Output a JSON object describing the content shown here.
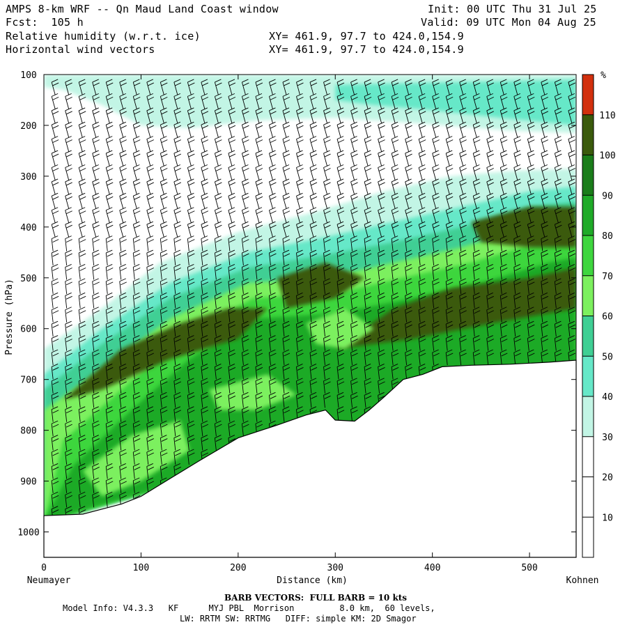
{
  "header": {
    "title": "AMPS 8-km WRF -- Qn Maud Land Coast window",
    "init": "Init: 00 UTC Thu 31 Jul 25",
    "fcst": "Fcst:  105 h",
    "valid": "Valid: 09 UTC Mon 04 Aug 25",
    "field1": "Relative humidity (w.r.t. ice)",
    "field1_xy": "XY= 461.9, 97.7 to 424.0,154.9",
    "field2": "Horizontal wind vectors",
    "field2_xy": "XY= 461.9, 97.7 to 424.0,154.9"
  },
  "footer": {
    "barb_note": "BARB VECTORS:  FULL BARB = 10 kts",
    "model_line1": "Model Info: V4.3.3   KF      MYJ PBL  Morrison         8.0 km,  60 levels,",
    "model_line2": "LW: RRTM SW: RRTMG   DIFF: simple KM: 2D Smagor"
  },
  "chart_data": {
    "type": "heatmap",
    "description": "",
    "xlabel": "Distance (km)",
    "ylabel": "Pressure (hPa)",
    "xlim": [
      0,
      548
    ],
    "ylim": [
      1050,
      100
    ],
    "x_ticks": [
      0,
      100,
      200,
      300,
      400,
      500
    ],
    "y_ticks": [
      100,
      200,
      300,
      400,
      500,
      600,
      700,
      800,
      900,
      1000
    ],
    "x_endpoints": {
      "left": "Neumayer",
      "right": "Kohnen"
    },
    "colorbar": {
      "unit": "%",
      "levels": [
        10,
        20,
        30,
        40,
        50,
        60,
        70,
        80,
        90,
        100,
        110
      ],
      "colors": [
        "#ffffff",
        "#ffffff",
        "#ffffff",
        "#c2f5e5",
        "#66e8c8",
        "#3fcf94",
        "#7cf05e",
        "#3ed63e",
        "#1faa28",
        "#1a7d1a",
        "#3a5a0c",
        "#d2300e"
      ]
    },
    "terrain": {
      "x": [
        0,
        40,
        80,
        100,
        130,
        160,
        200,
        240,
        270,
        290,
        300,
        320,
        335,
        350,
        370,
        390,
        410,
        440,
        480,
        520,
        548
      ],
      "p": [
        968,
        965,
        945,
        930,
        895,
        860,
        815,
        790,
        770,
        760,
        780,
        782,
        760,
        735,
        700,
        690,
        675,
        672,
        670,
        666,
        662
      ]
    }
  }
}
